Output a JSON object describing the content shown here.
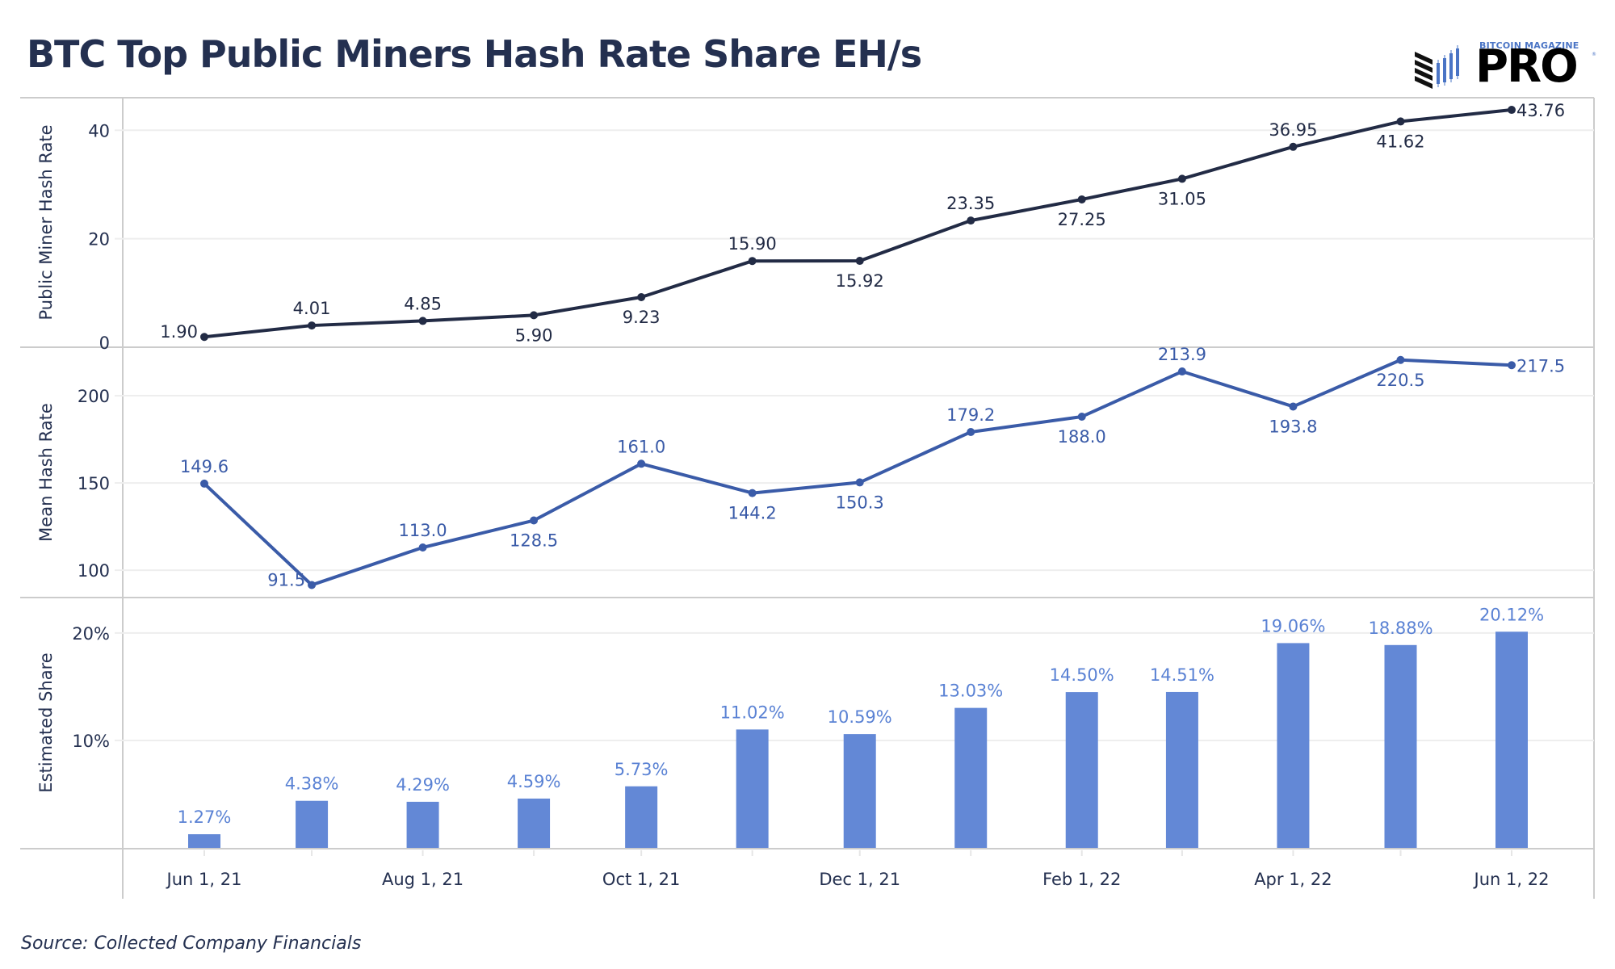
{
  "header": {
    "title": "BTC Top Public Miners Hash Rate Share EH/s",
    "logo_top": "BITCOIN MAGAZINE",
    "logo_main": "PRO",
    "logo_mark": "®"
  },
  "footer": {
    "source": "Source: Collected  Company Financials"
  },
  "colors": {
    "title": "#243050",
    "line_public": "#222b45",
    "line_mean": "#3a5ba8",
    "bars": "#6388d6",
    "bar_labels": "#5a82d4",
    "grid": "#eeeeee",
    "border": "#cccccc",
    "logo_blue": "#4a74c5"
  },
  "chart_data": [
    {
      "type": "line",
      "title": "BTC Top Public Miners Hash Rate Share EH/s",
      "ylabel": "Public Miner Hash Rate",
      "ylim": [
        0,
        46
      ],
      "yticks": [
        0,
        20,
        40
      ],
      "ytick_labels": [
        "0",
        "20",
        "40"
      ],
      "grid": true,
      "x": [
        "2021-06-01",
        "2021-07-01",
        "2021-08-01",
        "2021-09-01",
        "2021-10-01",
        "2021-11-01",
        "2021-12-01",
        "2022-01-01",
        "2022-02-01",
        "2022-03-01",
        "2022-04-01",
        "2022-05-01",
        "2022-06-01"
      ],
      "values": [
        1.9,
        4.01,
        4.85,
        5.9,
        9.23,
        15.9,
        15.92,
        23.35,
        27.25,
        31.05,
        36.95,
        41.62,
        43.76
      ],
      "labels": [
        "1.90",
        "4.01",
        "4.85",
        "5.90",
        "9.23",
        "15.90",
        "15.92",
        "23.35",
        "27.25",
        "31.05",
        "36.95",
        "41.62",
        "43.76"
      ],
      "label_pos": [
        "left",
        "above",
        "above",
        "below",
        "below",
        "above",
        "below",
        "above",
        "below",
        "below",
        "above",
        "below",
        "right"
      ]
    },
    {
      "type": "line",
      "ylabel": "Mean Hash Rate",
      "ylim": [
        84.3,
        227.8
      ],
      "yticks": [
        100,
        150,
        200
      ],
      "ytick_labels": [
        "100",
        "150",
        "200"
      ],
      "grid": true,
      "x": [
        "2021-06-01",
        "2021-07-01",
        "2021-08-01",
        "2021-09-01",
        "2021-10-01",
        "2021-11-01",
        "2021-12-01",
        "2022-01-01",
        "2022-02-01",
        "2022-03-01",
        "2022-04-01",
        "2022-05-01",
        "2022-06-01"
      ],
      "values": [
        149.6,
        91.5,
        113.0,
        128.5,
        161.0,
        144.2,
        150.3,
        179.2,
        188.0,
        213.9,
        193.8,
        220.5,
        217.5
      ],
      "labels": [
        "149.6",
        "91.5",
        "113.0",
        "128.5",
        "161.0",
        "144.2",
        "150.3",
        "179.2",
        "188.0",
        "213.9",
        "193.8",
        "220.5",
        "217.5"
      ],
      "label_pos": [
        "above",
        "left",
        "above",
        "below",
        "above",
        "below",
        "below",
        "above",
        "below",
        "above",
        "below",
        "below",
        "right"
      ]
    },
    {
      "type": "bar",
      "ylabel": "Estimated Share",
      "ylim": [
        0,
        23.3
      ],
      "yticks": [
        10,
        20
      ],
      "ytick_labels": [
        "10%",
        "20%"
      ],
      "grid": true,
      "x": [
        "2021-06-01",
        "2021-07-01",
        "2021-08-01",
        "2021-09-01",
        "2021-10-01",
        "2021-11-01",
        "2021-12-01",
        "2022-01-01",
        "2022-02-01",
        "2022-03-01",
        "2022-04-01",
        "2022-05-01",
        "2022-06-01"
      ],
      "values": [
        1.27,
        4.38,
        4.29,
        4.59,
        5.73,
        11.02,
        10.59,
        13.03,
        14.5,
        14.51,
        19.06,
        18.88,
        20.12
      ],
      "labels": [
        "1.27%",
        "4.38%",
        "4.29%",
        "4.59%",
        "5.73%",
        "11.02%",
        "10.59%",
        "13.03%",
        "14.50%",
        "14.51%",
        "19.06%",
        "18.88%",
        "20.12%"
      ],
      "xticks": [
        "2021-06-01",
        "2021-08-01",
        "2021-10-01",
        "2021-12-01",
        "2022-02-01",
        "2022-04-01",
        "2022-06-01"
      ],
      "xtick_labels": [
        "Jun 1, 21",
        "Aug 1, 21",
        "Oct 1, 21",
        "Dec 1, 21",
        "Feb 1, 22",
        "Apr 1, 22",
        "Jun 1, 22"
      ]
    }
  ]
}
